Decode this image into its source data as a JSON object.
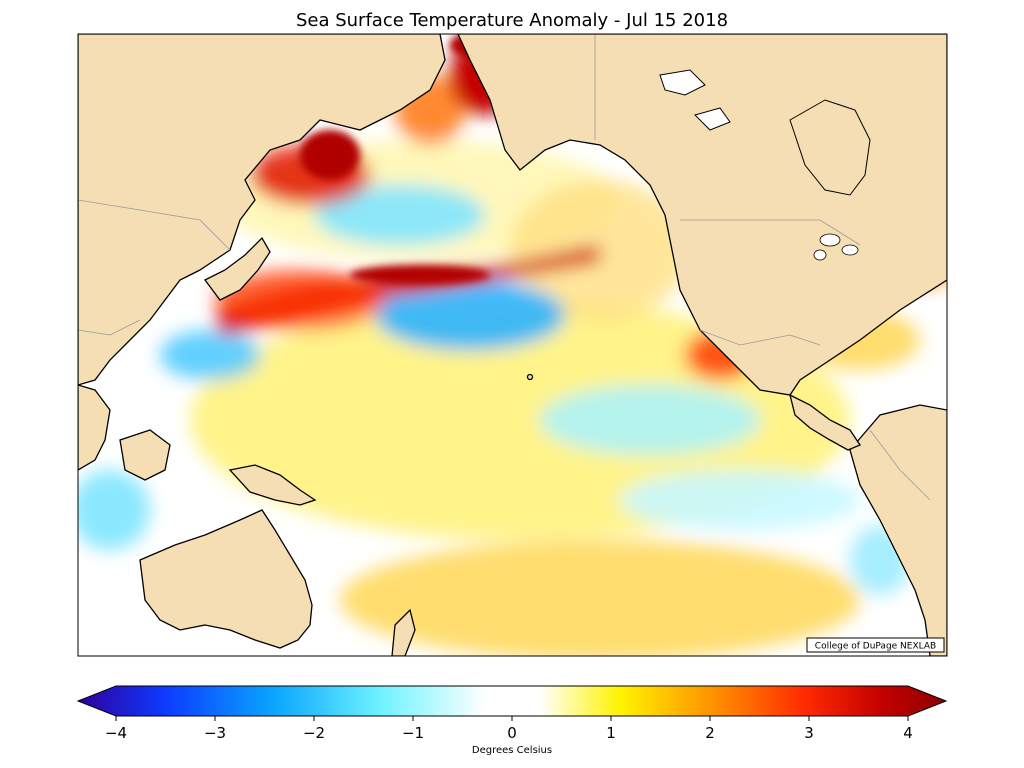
{
  "title": "Sea Surface Temperature Anomaly - Jul 15 2018",
  "credit": "College of DuPage NEXLAB",
  "colorbar": {
    "label": "Degrees Celsius",
    "min": -4,
    "max": 4,
    "ticks": [
      "−4",
      "−3",
      "−2",
      "−1",
      "0",
      "1",
      "2",
      "3",
      "4"
    ],
    "stops": [
      {
        "v": -4.0,
        "c": "#30009c"
      },
      {
        "v": -3.2,
        "c": "#0d3aff"
      },
      {
        "v": -2.2,
        "c": "#0aa5ff"
      },
      {
        "v": -1.2,
        "c": "#6ff3ff"
      },
      {
        "v": -0.25,
        "c": "#ffffff"
      },
      {
        "v": 0.25,
        "c": "#ffffff"
      },
      {
        "v": 1.0,
        "c": "#fff200"
      },
      {
        "v": 1.9,
        "c": "#ff8c00"
      },
      {
        "v": 2.7,
        "c": "#ff2a00"
      },
      {
        "v": 3.4,
        "c": "#c40000"
      },
      {
        "v": 4.0,
        "c": "#8e0000"
      }
    ]
  },
  "colors": {
    "land": "#f5deb3",
    "coast": "#000000",
    "border": "#9a9a9a"
  }
}
